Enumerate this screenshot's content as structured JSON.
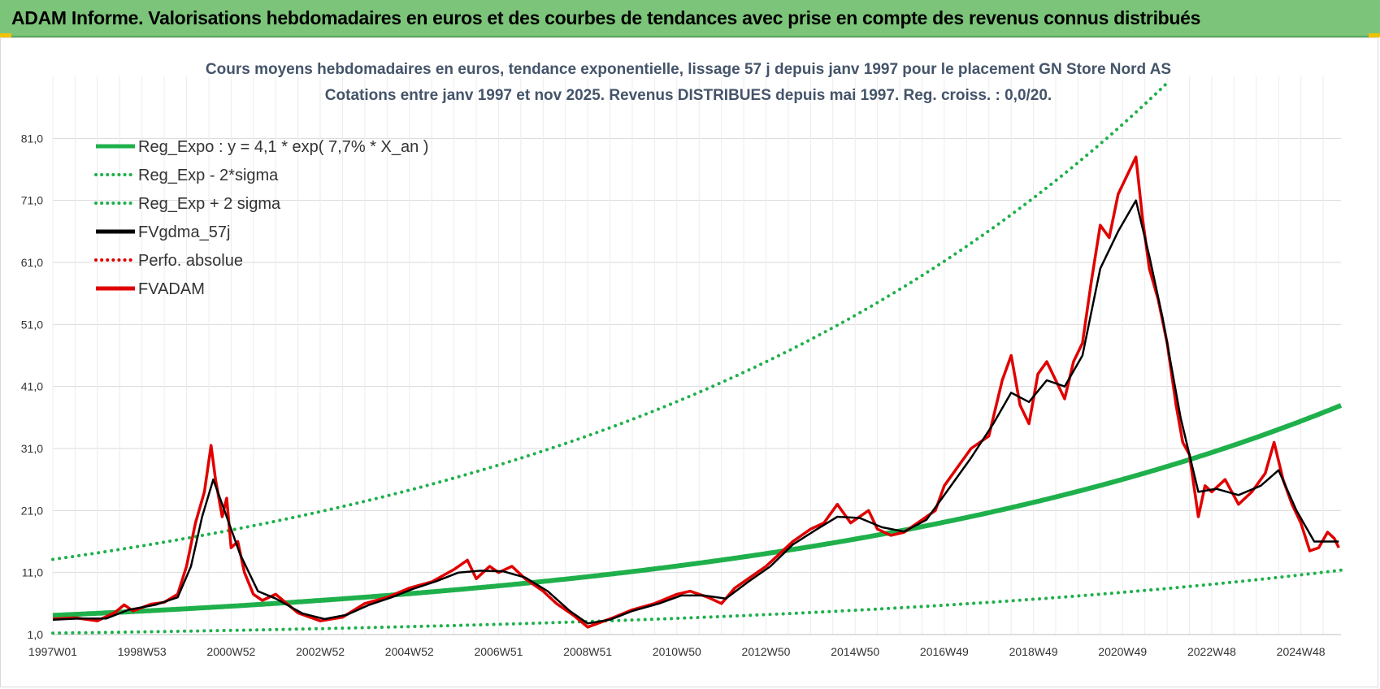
{
  "header": {
    "title": "ADAM Informe. Valorisations hebdomadaires en euros et des courbes de tendances avec prise en compte des revenus connus distribués"
  },
  "chart_data": {
    "type": "line",
    "title_line1": "Cours moyens hebdomadaires en euros, tendance exponentielle, lissage 57 j depuis janv 1997  pour le placement GN Store Nord AS",
    "title_line2": "Cotations entre janv 1997 et nov 2025. Revenus DISTRIBUES depuis mai 1997.  Reg. croiss. : 0,0/20.",
    "y_ticks": [
      "1,0",
      "11,0",
      "21,0",
      "31,0",
      "41,0",
      "51,0",
      "61,0",
      "71,0",
      "81,0"
    ],
    "ylim": [
      1,
      91
    ],
    "x_ticks": [
      "1997W01",
      "1998W53",
      "2000W52",
      "2002W52",
      "2004W52",
      "2006W51",
      "2008W51",
      "2010W50",
      "2012W50",
      "2014W50",
      "2016W49",
      "2018W49",
      "2020W49",
      "2022W48",
      "2024W48"
    ],
    "xlim": [
      1997.0,
      2025.9
    ],
    "legend": [
      {
        "label": "Reg_Expo : y = 4,1 * exp( 7,7% *  X_an )",
        "color": "#1fb04c",
        "style": "solid"
      },
      {
        "label": "Reg_Exp - 2*sigma",
        "color": "#1fb04c",
        "style": "dotted"
      },
      {
        "label": "Reg_Exp + 2 sigma",
        "color": "#1fb04c",
        "style": "dotted"
      },
      {
        "label": "FVgdma_57j",
        "color": "#000000",
        "style": "solid"
      },
      {
        "label": "Perfo. absolue",
        "color": "#e00000",
        "style": "dotted"
      },
      {
        "label": "FVADAM",
        "color": "#e00000",
        "style": "solid"
      }
    ],
    "regression": {
      "a": 4.1,
      "b": 0.077,
      "x0": 1997.0,
      "lower_factor": 0.3,
      "upper_factor": 3.2
    },
    "series": [
      {
        "name": "FVADAM",
        "color": "#e00000",
        "points": [
          [
            1997.0,
            3.5
          ],
          [
            1997.5,
            3.7
          ],
          [
            1998.0,
            3.2
          ],
          [
            1998.4,
            4.6
          ],
          [
            1998.6,
            5.8
          ],
          [
            1998.8,
            4.8
          ],
          [
            1999.2,
            5.9
          ],
          [
            1999.5,
            6.2
          ],
          [
            1999.8,
            7.5
          ],
          [
            2000.0,
            12.0
          ],
          [
            2000.2,
            19.0
          ],
          [
            2000.4,
            24.0
          ],
          [
            2000.55,
            31.5
          ],
          [
            2000.65,
            26.0
          ],
          [
            2000.8,
            20.0
          ],
          [
            2000.9,
            23.0
          ],
          [
            2001.0,
            15.0
          ],
          [
            2001.15,
            16.0
          ],
          [
            2001.3,
            11.0
          ],
          [
            2001.5,
            7.5
          ],
          [
            2001.7,
            6.5
          ],
          [
            2002.0,
            7.5
          ],
          [
            2002.5,
            4.5
          ],
          [
            2003.0,
            3.2
          ],
          [
            2003.5,
            3.8
          ],
          [
            2004.0,
            6.0
          ],
          [
            2004.5,
            7.0
          ],
          [
            2005.0,
            8.5
          ],
          [
            2005.5,
            9.5
          ],
          [
            2006.0,
            11.5
          ],
          [
            2006.3,
            13.0
          ],
          [
            2006.5,
            10.0
          ],
          [
            2006.8,
            12.0
          ],
          [
            2007.0,
            11.0
          ],
          [
            2007.3,
            12.0
          ],
          [
            2007.6,
            10.0
          ],
          [
            2008.0,
            8.0
          ],
          [
            2008.3,
            6.0
          ],
          [
            2008.7,
            4.0
          ],
          [
            2009.0,
            2.2
          ],
          [
            2009.3,
            3.0
          ],
          [
            2009.6,
            3.8
          ],
          [
            2010.0,
            5.0
          ],
          [
            2010.5,
            6.0
          ],
          [
            2011.0,
            7.5
          ],
          [
            2011.3,
            8.0
          ],
          [
            2011.7,
            7.0
          ],
          [
            2012.0,
            6.0
          ],
          [
            2012.3,
            8.5
          ],
          [
            2012.6,
            10.0
          ],
          [
            2013.0,
            12.0
          ],
          [
            2013.3,
            14.0
          ],
          [
            2013.6,
            16.0
          ],
          [
            2014.0,
            18.0
          ],
          [
            2014.3,
            19.0
          ],
          [
            2014.6,
            22.0
          ],
          [
            2014.9,
            19.0
          ],
          [
            2015.3,
            21.0
          ],
          [
            2015.5,
            18.0
          ],
          [
            2015.8,
            17.0
          ],
          [
            2016.1,
            17.5
          ],
          [
            2016.5,
            19.5
          ],
          [
            2016.8,
            21.0
          ],
          [
            2017.0,
            25.0
          ],
          [
            2017.3,
            28.0
          ],
          [
            2017.6,
            31.0
          ],
          [
            2018.0,
            33.0
          ],
          [
            2018.3,
            42.0
          ],
          [
            2018.5,
            46.0
          ],
          [
            2018.7,
            38.0
          ],
          [
            2018.9,
            35.0
          ],
          [
            2019.1,
            43.0
          ],
          [
            2019.3,
            45.0
          ],
          [
            2019.5,
            42.0
          ],
          [
            2019.7,
            39.0
          ],
          [
            2019.9,
            45.0
          ],
          [
            2020.1,
            48.0
          ],
          [
            2020.3,
            58.0
          ],
          [
            2020.5,
            67.0
          ],
          [
            2020.7,
            65.0
          ],
          [
            2020.9,
            72.0
          ],
          [
            2021.1,
            75.0
          ],
          [
            2021.3,
            78.0
          ],
          [
            2021.45,
            68.0
          ],
          [
            2021.6,
            60.0
          ],
          [
            2021.8,
            55.0
          ],
          [
            2022.0,
            48.0
          ],
          [
            2022.2,
            38.0
          ],
          [
            2022.35,
            32.0
          ],
          [
            2022.5,
            30.0
          ],
          [
            2022.7,
            20.0
          ],
          [
            2022.85,
            25.0
          ],
          [
            2023.0,
            24.0
          ],
          [
            2023.3,
            26.0
          ],
          [
            2023.6,
            22.0
          ],
          [
            2023.9,
            24.0
          ],
          [
            2024.2,
            27.0
          ],
          [
            2024.4,
            32.0
          ],
          [
            2024.6,
            26.0
          ],
          [
            2024.8,
            22.0
          ],
          [
            2025.0,
            19.0
          ],
          [
            2025.2,
            14.5
          ],
          [
            2025.4,
            15.0
          ],
          [
            2025.6,
            17.5
          ],
          [
            2025.75,
            16.5
          ],
          [
            2025.85,
            15.0
          ]
        ]
      },
      {
        "name": "FVgdma_57j",
        "color": "#000000",
        "points": [
          [
            1997.0,
            3.4
          ],
          [
            1997.6,
            3.6
          ],
          [
            1998.2,
            3.6
          ],
          [
            1998.7,
            5.0
          ],
          [
            1999.3,
            5.8
          ],
          [
            1999.8,
            7.0
          ],
          [
            2000.1,
            12.0
          ],
          [
            2000.35,
            20.0
          ],
          [
            2000.6,
            26.0
          ],
          [
            2000.85,
            21.0
          ],
          [
            2001.2,
            14.0
          ],
          [
            2001.6,
            8.0
          ],
          [
            2002.0,
            6.8
          ],
          [
            2002.6,
            4.4
          ],
          [
            2003.1,
            3.5
          ],
          [
            2003.6,
            4.2
          ],
          [
            2004.1,
            5.8
          ],
          [
            2004.6,
            7.0
          ],
          [
            2005.1,
            8.4
          ],
          [
            2005.6,
            9.6
          ],
          [
            2006.1,
            11.0
          ],
          [
            2006.6,
            11.3
          ],
          [
            2007.1,
            11.2
          ],
          [
            2007.6,
            10.2
          ],
          [
            2008.1,
            8.0
          ],
          [
            2008.6,
            4.8
          ],
          [
            2009.0,
            2.8
          ],
          [
            2009.5,
            3.4
          ],
          [
            2010.0,
            4.8
          ],
          [
            2010.6,
            6.0
          ],
          [
            2011.1,
            7.3
          ],
          [
            2011.6,
            7.3
          ],
          [
            2012.1,
            6.8
          ],
          [
            2012.6,
            9.5
          ],
          [
            2013.1,
            12.0
          ],
          [
            2013.6,
            15.5
          ],
          [
            2014.1,
            17.8
          ],
          [
            2014.6,
            20.0
          ],
          [
            2015.1,
            19.8
          ],
          [
            2015.6,
            18.3
          ],
          [
            2016.1,
            17.6
          ],
          [
            2016.6,
            19.5
          ],
          [
            2017.1,
            24.5
          ],
          [
            2017.6,
            29.5
          ],
          [
            2018.1,
            35.0
          ],
          [
            2018.5,
            40.0
          ],
          [
            2018.9,
            38.5
          ],
          [
            2019.3,
            42.0
          ],
          [
            2019.7,
            41.0
          ],
          [
            2020.1,
            46.0
          ],
          [
            2020.5,
            60.0
          ],
          [
            2020.9,
            66.0
          ],
          [
            2021.3,
            71.0
          ],
          [
            2021.6,
            62.0
          ],
          [
            2021.9,
            52.0
          ],
          [
            2022.3,
            36.0
          ],
          [
            2022.7,
            24.0
          ],
          [
            2023.1,
            24.5
          ],
          [
            2023.6,
            23.5
          ],
          [
            2024.1,
            25.0
          ],
          [
            2024.5,
            27.5
          ],
          [
            2024.9,
            21.0
          ],
          [
            2025.3,
            16.0
          ],
          [
            2025.85,
            16.0
          ]
        ]
      }
    ]
  }
}
